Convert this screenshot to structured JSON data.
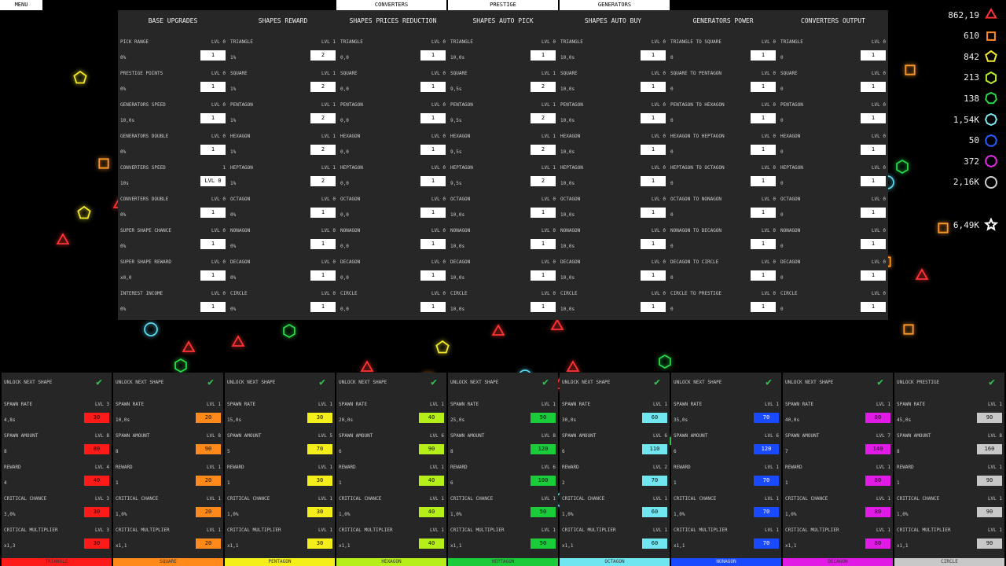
{
  "tabs": {
    "menu": "MENU",
    "converters": "CONVERTERS",
    "prestige": "PRESTIGE",
    "generators": "GENERATORS"
  },
  "resources": [
    {
      "value": "862,19",
      "icon": "triangle-icon",
      "color": "#ff3333"
    },
    {
      "value": "610",
      "icon": "square-icon",
      "color": "#ff8a22"
    },
    {
      "value": "842",
      "icon": "pentagon-icon",
      "color": "#f4ea2a"
    },
    {
      "value": "213",
      "icon": "hexagon-icon",
      "color": "#b8ee2a"
    },
    {
      "value": "138",
      "icon": "heptagon-icon",
      "color": "#2ad94a"
    },
    {
      "value": "1,54K",
      "icon": "octagon-icon",
      "color": "#7fe6f2"
    },
    {
      "value": "50",
      "icon": "nonagon-icon",
      "color": "#2a5cff"
    },
    {
      "value": "372",
      "icon": "decagon-icon",
      "color": "#e52ae6"
    },
    {
      "value": "2,16K",
      "icon": "circle-icon",
      "color": "#cfcfcf"
    },
    {
      "value": "6,49K",
      "icon": "star-icon",
      "color": "#ffffff"
    }
  ],
  "upgrades": [
    {
      "title": "BASE UPGRADES",
      "rows": [
        {
          "name": "PICK RANGE",
          "lvl": "LVL 0",
          "val": "0%",
          "btn": "1"
        },
        {
          "name": "PRESTIGE POINTS",
          "lvl": "LVL 0",
          "val": "0%",
          "btn": "1"
        },
        {
          "name": "GENERATORS SPEED",
          "lvl": "LVL 0",
          "val": "10,0s",
          "btn": "1"
        },
        {
          "name": "GENERATORS DOUBLE",
          "lvl": "LVL 0",
          "val": "0%",
          "btn": "1"
        },
        {
          "name": "CONVERTERS SPEED",
          "lvl": "1",
          "val": "10s",
          "btn": "LVL 0"
        },
        {
          "name": "CONVERTERS DOUBLE",
          "lvl": "LVL 0",
          "val": "0%",
          "btn": "1"
        },
        {
          "name": "SUPER SHAPE CHANCE",
          "lvl": "LVL 0",
          "val": "0%",
          "btn": "1"
        },
        {
          "name": "SUPER SHAPE REWARD",
          "lvl": "LVL 0",
          "val": "x0,0",
          "btn": "1"
        },
        {
          "name": "INTEREST INCOME",
          "lvl": "LVL 0",
          "val": "0%",
          "btn": "1"
        }
      ]
    },
    {
      "title": "SHAPES REWARD",
      "rows": [
        {
          "name": "TRIANGLE",
          "lvl": "LVL 1",
          "val": "1%",
          "btn": "2"
        },
        {
          "name": "SQUARE",
          "lvl": "LVL 1",
          "val": "1%",
          "btn": "2"
        },
        {
          "name": "PENTAGON",
          "lvl": "LVL 1",
          "val": "1%",
          "btn": "2"
        },
        {
          "name": "HEXAGON",
          "lvl": "LVL 1",
          "val": "1%",
          "btn": "2"
        },
        {
          "name": "HEPTAGON",
          "lvl": "LVL 1",
          "val": "1%",
          "btn": "2"
        },
        {
          "name": "OCTAGON",
          "lvl": "LVL 0",
          "val": "0%",
          "btn": "1"
        },
        {
          "name": "NONAGON",
          "lvl": "LVL 0",
          "val": "0%",
          "btn": "1"
        },
        {
          "name": "DECAGON",
          "lvl": "LVL 0",
          "val": "0%",
          "btn": "1"
        },
        {
          "name": "CIRCLE",
          "lvl": "LVL 0",
          "val": "0%",
          "btn": "1"
        }
      ]
    },
    {
      "title": "SHAPES PRICES REDUCTION",
      "rows": [
        {
          "name": "TRIANGLE",
          "lvl": "LVL 0",
          "val": "0,0",
          "btn": "1"
        },
        {
          "name": "SQUARE",
          "lvl": "LVL 0",
          "val": "0,0",
          "btn": "1"
        },
        {
          "name": "PENTAGON",
          "lvl": "LVL 0",
          "val": "0,0",
          "btn": "1"
        },
        {
          "name": "HEXAGON",
          "lvl": "LVL 0",
          "val": "0,0",
          "btn": "1"
        },
        {
          "name": "HEPTAGON",
          "lvl": "LVL 0",
          "val": "0,0",
          "btn": "1"
        },
        {
          "name": "OCTAGON",
          "lvl": "LVL 0",
          "val": "0,0",
          "btn": "1"
        },
        {
          "name": "NONAGON",
          "lvl": "LVL 0",
          "val": "0,0",
          "btn": "1"
        },
        {
          "name": "DECAGON",
          "lvl": "LVL 0",
          "val": "0,0",
          "btn": "1"
        },
        {
          "name": "CIRCLE",
          "lvl": "LVL 0",
          "val": "0,0",
          "btn": "1"
        }
      ]
    },
    {
      "title": "SHAPES AUTO PICK",
      "rows": [
        {
          "name": "TRIANGLE",
          "lvl": "LVL 0",
          "val": "10,0s",
          "btn": "1"
        },
        {
          "name": "SQUARE",
          "lvl": "LVL 1",
          "val": "9,5s",
          "btn": "2"
        },
        {
          "name": "PENTAGON",
          "lvl": "LVL 1",
          "val": "9,5s",
          "btn": "2"
        },
        {
          "name": "HEXAGON",
          "lvl": "LVL 1",
          "val": "9,5s",
          "btn": "2"
        },
        {
          "name": "HEPTAGON",
          "lvl": "LVL 1",
          "val": "9,5s",
          "btn": "2"
        },
        {
          "name": "OCTAGON",
          "lvl": "LVL 0",
          "val": "10,0s",
          "btn": "1"
        },
        {
          "name": "NONAGON",
          "lvl": "LVL 0",
          "val": "10,0s",
          "btn": "1"
        },
        {
          "name": "DECAGON",
          "lvl": "LVL 0",
          "val": "10,0s",
          "btn": "1"
        },
        {
          "name": "CIRCLE",
          "lvl": "LVL 0",
          "val": "10,0s",
          "btn": "1"
        }
      ]
    },
    {
      "title": "SHAPES AUTO BUY",
      "rows": [
        {
          "name": "TRIANGLE",
          "lvl": "LVL 0",
          "val": "10,0s",
          "btn": "1"
        },
        {
          "name": "SQUARE",
          "lvl": "LVL 0",
          "val": "10,0s",
          "btn": "1"
        },
        {
          "name": "PENTAGON",
          "lvl": "LVL 0",
          "val": "10,0s",
          "btn": "1"
        },
        {
          "name": "HEXAGON",
          "lvl": "LVL 0",
          "val": "10,0s",
          "btn": "1"
        },
        {
          "name": "HEPTAGON",
          "lvl": "LVL 0",
          "val": "10,0s",
          "btn": "1"
        },
        {
          "name": "OCTAGON",
          "lvl": "LVL 0",
          "val": "10,0s",
          "btn": "1"
        },
        {
          "name": "NONAGON",
          "lvl": "LVL 0",
          "val": "10,0s",
          "btn": "1"
        },
        {
          "name": "DECAGON",
          "lvl": "LVL 0",
          "val": "10,0s",
          "btn": "1"
        },
        {
          "name": "CIRCLE",
          "lvl": "LVL 0",
          "val": "10,0s",
          "btn": "1"
        }
      ]
    },
    {
      "title": "GENERATORS POWER",
      "rows": [
        {
          "name": "TRIANGLE TO SQUARE",
          "lvl": "LVL 0",
          "val": "0",
          "btn": "1"
        },
        {
          "name": "SQUARE TO PENTAGON",
          "lvl": "LVL 0",
          "val": "0",
          "btn": "1"
        },
        {
          "name": "PENTAGON TO HEXAGON",
          "lvl": "LVL 0",
          "val": "0",
          "btn": "1"
        },
        {
          "name": "HEXAGON TO HEPTAGON",
          "lvl": "LVL 0",
          "val": "0",
          "btn": "1"
        },
        {
          "name": "HEPTAGON TO OCTAGON",
          "lvl": "LVL 0",
          "val": "0",
          "btn": "1"
        },
        {
          "name": "OCTAGON TO NONAGON",
          "lvl": "LVL 0",
          "val": "0",
          "btn": "1"
        },
        {
          "name": "NONAGON TO DECAGON",
          "lvl": "LVL 0",
          "val": "0",
          "btn": "1"
        },
        {
          "name": "DECAGON TO CIRCLE",
          "lvl": "LVL 0",
          "val": "0",
          "btn": "1"
        },
        {
          "name": "CIRCLE TO PRESTIGE",
          "lvl": "LVL 0",
          "val": "0",
          "btn": "1"
        }
      ]
    },
    {
      "title": "CONVERTERS OUTPUT",
      "rows": [
        {
          "name": "TRIANGLE",
          "lvl": "LVL 0",
          "val": "0",
          "btn": "1"
        },
        {
          "name": "SQUARE",
          "lvl": "LVL 0",
          "val": "0",
          "btn": "1"
        },
        {
          "name": "PENTAGON",
          "lvl": "LVL 0",
          "val": "0",
          "btn": "1"
        },
        {
          "name": "HEXAGON",
          "lvl": "LVL 0",
          "val": "0",
          "btn": "1"
        },
        {
          "name": "HEPTAGON",
          "lvl": "LVL 0",
          "val": "0",
          "btn": "1"
        },
        {
          "name": "OCTAGON",
          "lvl": "LVL 0",
          "val": "0",
          "btn": "1"
        },
        {
          "name": "NONAGON",
          "lvl": "LVL 0",
          "val": "0",
          "btn": "1"
        },
        {
          "name": "DECAGON",
          "lvl": "LVL 0",
          "val": "0",
          "btn": "1"
        },
        {
          "name": "CIRCLE",
          "lvl": "LVL 0",
          "val": "0",
          "btn": "1"
        }
      ]
    }
  ],
  "shapes": [
    {
      "label": "TRIANGLE",
      "unlock": "UNLOCK NEXT SHAPE",
      "color": "#ff1a1a",
      "text_color": "#ff3a3a",
      "rows": [
        {
          "name": "SPAWN RATE",
          "lvl": "LVL 3",
          "val": "4,8s",
          "btn": "30"
        },
        {
          "name": "SPAWN AMOUNT",
          "lvl": "LVL 8",
          "val": "8",
          "btn": "80"
        },
        {
          "name": "REWARD",
          "lvl": "LVL 4",
          "val": "4",
          "btn": "40"
        },
        {
          "name": "CRITICAL CHANCE",
          "lvl": "LVL 3",
          "val": "3,0%",
          "btn": "30"
        },
        {
          "name": "CRITICAL MULTIPLIER",
          "lvl": "LVL 3",
          "val": "x1,3",
          "btn": "30"
        }
      ]
    },
    {
      "label": "SQUARE",
      "unlock": "UNLOCK NEXT SHAPE",
      "color": "#ff8a1a",
      "text_color": "#ff8a1a",
      "rows": [
        {
          "name": "SPAWN RATE",
          "lvl": "LVL 1",
          "val": "10,0s",
          "btn": "20"
        },
        {
          "name": "SPAWN AMOUNT",
          "lvl": "LVL 8",
          "val": "8",
          "btn": "90"
        },
        {
          "name": "REWARD",
          "lvl": "LVL 1",
          "val": "1",
          "btn": "20"
        },
        {
          "name": "CRITICAL CHANCE",
          "lvl": "LVL 1",
          "val": "1,0%",
          "btn": "20"
        },
        {
          "name": "CRITICAL MULTIPLIER",
          "lvl": "LVL 1",
          "val": "x1,1",
          "btn": "20"
        }
      ]
    },
    {
      "label": "PENTAGON",
      "unlock": "UNLOCK NEXT SHAPE",
      "color": "#f4ee1a",
      "text_color": "#f4ee1a",
      "rows": [
        {
          "name": "SPAWN RATE",
          "lvl": "LVL 1",
          "val": "15,0s",
          "btn": "30"
        },
        {
          "name": "SPAWN AMOUNT",
          "lvl": "LVL 5",
          "val": "5",
          "btn": "70"
        },
        {
          "name": "REWARD",
          "lvl": "LVL 1",
          "val": "1",
          "btn": "30"
        },
        {
          "name": "CRITICAL CHANCE",
          "lvl": "LVL 1",
          "val": "1,0%",
          "btn": "30"
        },
        {
          "name": "CRITICAL MULTIPLIER",
          "lvl": "LVL 1",
          "val": "x1,1",
          "btn": "30"
        }
      ]
    },
    {
      "label": "HEXAGON",
      "unlock": "UNLOCK NEXT SHAPE",
      "color": "#b6ee1a",
      "text_color": "#b6ee1a",
      "rows": [
        {
          "name": "SPAWN RATE",
          "lvl": "LVL 1",
          "val": "20,0s",
          "btn": "40"
        },
        {
          "name": "SPAWN AMOUNT",
          "lvl": "LVL 6",
          "val": "6",
          "btn": "90"
        },
        {
          "name": "REWARD",
          "lvl": "LVL 1",
          "val": "1",
          "btn": "40"
        },
        {
          "name": "CRITICAL CHANCE",
          "lvl": "LVL 1",
          "val": "1,0%",
          "btn": "40"
        },
        {
          "name": "CRITICAL MULTIPLIER",
          "lvl": "LVL 1",
          "val": "x1,1",
          "btn": "40"
        }
      ]
    },
    {
      "label": "HEPTAGON",
      "unlock": "UNLOCK NEXT SHAPE",
      "color": "#1acc3a",
      "text_color": "#1acc3a",
      "rows": [
        {
          "name": "SPAWN RATE",
          "lvl": "LVL 1",
          "val": "25,0s",
          "btn": "50"
        },
        {
          "name": "SPAWN AMOUNT",
          "lvl": "LVL 8",
          "val": "8",
          "btn": "120"
        },
        {
          "name": "REWARD",
          "lvl": "LVL 6",
          "val": "6",
          "btn": "100"
        },
        {
          "name": "CRITICAL CHANCE",
          "lvl": "LVL 1",
          "val": "1,0%",
          "btn": "50"
        },
        {
          "name": "CRITICAL MULTIPLIER",
          "lvl": "LVL 1",
          "val": "x1,1",
          "btn": "50"
        }
      ]
    },
    {
      "label": "OCTAGON",
      "unlock": "UNLOCK NEXT SHAPE",
      "color": "#6fe6f0",
      "text_color": "#6fe6f0",
      "rows": [
        {
          "name": "SPAWN RATE",
          "lvl": "LVL 1",
          "val": "30,0s",
          "btn": "60"
        },
        {
          "name": "SPAWN AMOUNT",
          "lvl": "LVL 6",
          "val": "6",
          "btn": "110"
        },
        {
          "name": "REWARD",
          "lvl": "LVL 2",
          "val": "2",
          "btn": "70"
        },
        {
          "name": "CRITICAL CHANCE",
          "lvl": "LVL 1",
          "val": "1,0%",
          "btn": "60"
        },
        {
          "name": "CRITICAL MULTIPLIER",
          "lvl": "LVL 1",
          "val": "x1,1",
          "btn": "60"
        }
      ]
    },
    {
      "label": "NONAGON",
      "unlock": "UNLOCK NEXT SHAPE",
      "color": "#1a4aff",
      "text_color": "#3a66ff",
      "rows": [
        {
          "name": "SPAWN RATE",
          "lvl": "LVL 1",
          "val": "35,0s",
          "btn": "70"
        },
        {
          "name": "SPAWN AMOUNT",
          "lvl": "LVL 6",
          "val": "6",
          "btn": "120"
        },
        {
          "name": "REWARD",
          "lvl": "LVL 1",
          "val": "1",
          "btn": "70"
        },
        {
          "name": "CRITICAL CHANCE",
          "lvl": "LVL 1",
          "val": "1,0%",
          "btn": "70"
        },
        {
          "name": "CRITICAL MULTIPLIER",
          "lvl": "LVL 1",
          "val": "x1,1",
          "btn": "70"
        }
      ]
    },
    {
      "label": "DECAGON",
      "unlock": "UNLOCK NEXT SHAPE",
      "color": "#e21ae6",
      "text_color": "#e21ae6",
      "rows": [
        {
          "name": "SPAWN RATE",
          "lvl": "LVL 1",
          "val": "40,0s",
          "btn": "80"
        },
        {
          "name": "SPAWN AMOUNT",
          "lvl": "LVL 7",
          "val": "7",
          "btn": "140"
        },
        {
          "name": "REWARD",
          "lvl": "LVL 1",
          "val": "1",
          "btn": "80"
        },
        {
          "name": "CRITICAL CHANCE",
          "lvl": "LVL 1",
          "val": "1,0%",
          "btn": "80"
        },
        {
          "name": "CRITICAL MULTIPLIER",
          "lvl": "LVL 1",
          "val": "x1,1",
          "btn": "80"
        }
      ]
    },
    {
      "label": "CIRCLE",
      "unlock": "UNLOCK PRESTIGE",
      "color": "#c8c8c8",
      "text_color": "#c8c8c8",
      "rows": [
        {
          "name": "SPAWN RATE",
          "lvl": "LVL 1",
          "val": "45,0s",
          "btn": "90"
        },
        {
          "name": "SPAWN AMOUNT",
          "lvl": "LVL 8",
          "val": "8",
          "btn": "160"
        },
        {
          "name": "REWARD",
          "lvl": "LVL 1",
          "val": "1",
          "btn": "90"
        },
        {
          "name": "CRITICAL CHANCE",
          "lvl": "LVL 1",
          "val": "1,0%",
          "btn": "90"
        },
        {
          "name": "CRITICAL MULTIPLIER",
          "lvl": "LVL 1",
          "val": "x1,1",
          "btn": "90"
        }
      ]
    }
  ]
}
